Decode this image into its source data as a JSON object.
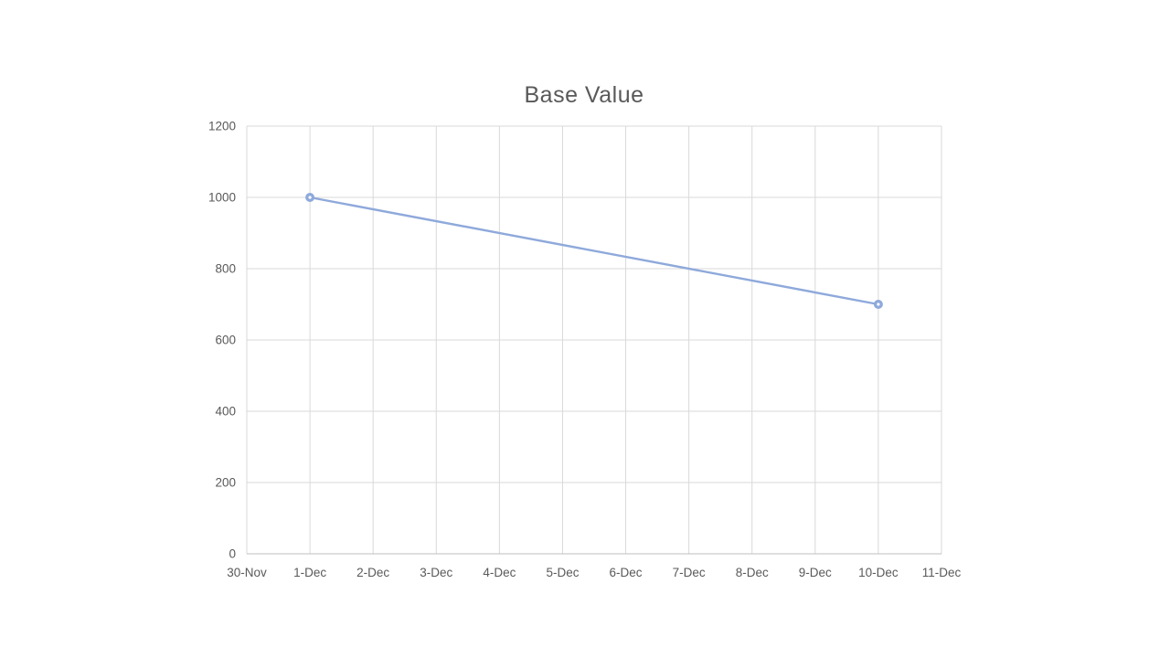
{
  "chart_data": {
    "type": "line",
    "title": "Base Value",
    "categories": [
      "30-Nov",
      "1-Dec",
      "2-Dec",
      "3-Dec",
      "4-Dec",
      "5-Dec",
      "6-Dec",
      "7-Dec",
      "8-Dec",
      "9-Dec",
      "10-Dec",
      "11-Dec"
    ],
    "series": [
      {
        "name": "Base Value",
        "points": [
          {
            "category": "1-Dec",
            "value": 1000
          },
          {
            "category": "10-Dec",
            "value": 700
          }
        ],
        "color": "#8EA9DB",
        "marker": "circle-donut"
      }
    ],
    "xlabel": "",
    "ylabel": "",
    "ylim": [
      0,
      1200
    ],
    "y_ticks": [
      0,
      200,
      400,
      600,
      800,
      1000,
      1200
    ],
    "grid": true,
    "legend": false,
    "colors": {
      "gridline": "#D9D9D9",
      "axis_line": "#BFBFBF",
      "tick_label": "#595959",
      "title": "#595959",
      "background": "#FFFFFF"
    }
  }
}
